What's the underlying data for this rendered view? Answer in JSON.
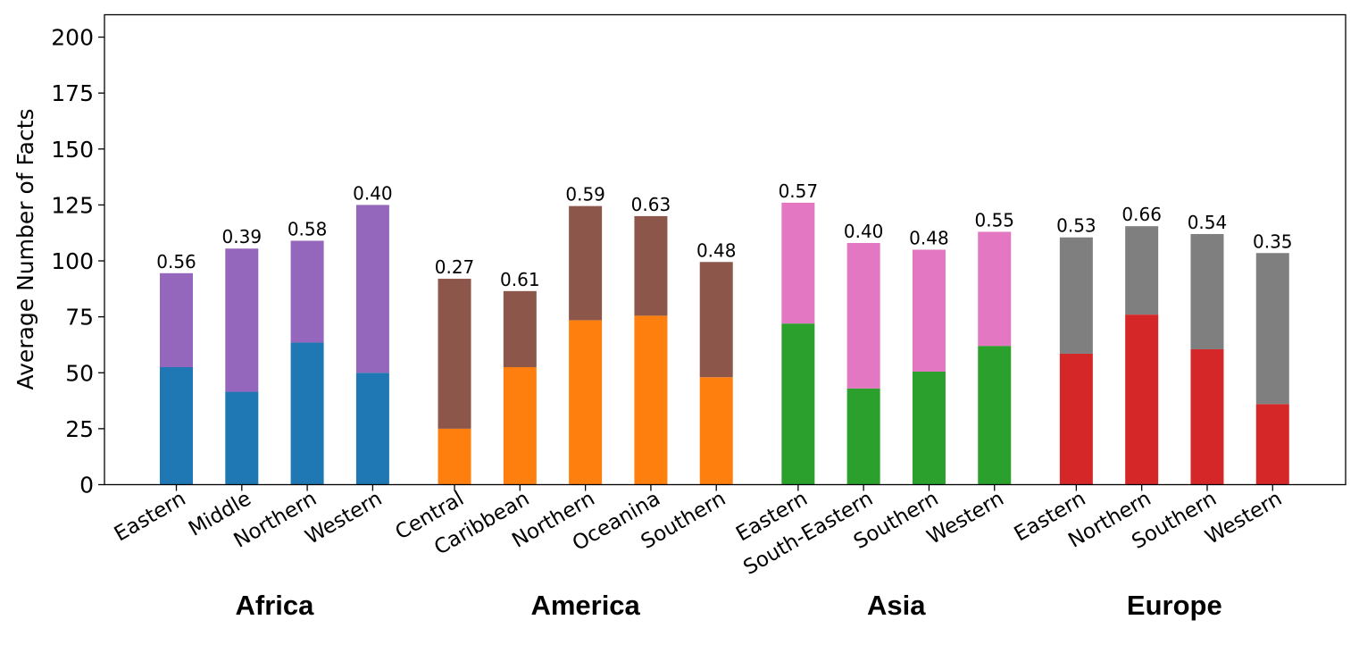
{
  "chart_data": {
    "type": "bar",
    "stacked": true,
    "ylabel": "Average Number of Facts",
    "xlabel": "",
    "ylim": [
      0,
      210
    ],
    "yticks": [
      "0",
      "25",
      "50",
      "75",
      "100",
      "125",
      "150",
      "175",
      "200"
    ],
    "series": [
      {
        "name": "base"
      },
      {
        "name": "top"
      }
    ],
    "groups": [
      {
        "name": "Africa",
        "colors": {
          "base": "#1f77b4",
          "top": "#9467bd"
        },
        "bars": [
          {
            "category": "Eastern",
            "base": 52.5,
            "total": 94.5,
            "label": "0.56"
          },
          {
            "category": "Middle",
            "base": 41.5,
            "total": 105.5,
            "label": "0.39"
          },
          {
            "category": "Northern",
            "base": 63.5,
            "total": 109,
            "label": "0.58"
          },
          {
            "category": "Western",
            "base": 50,
            "total": 125,
            "label": "0.40"
          }
        ]
      },
      {
        "name": "America",
        "colors": {
          "base": "#ff7f0e",
          "top": "#8c564b"
        },
        "bars": [
          {
            "category": "Central",
            "base": 25,
            "total": 92,
            "label": "0.27"
          },
          {
            "category": "Caribbean",
            "base": 52.5,
            "total": 86.5,
            "label": "0.61"
          },
          {
            "category": "Northern",
            "base": 73.5,
            "total": 124.5,
            "label": "0.59"
          },
          {
            "category": "Oceanina",
            "base": 75.5,
            "total": 120,
            "label": "0.63"
          },
          {
            "category": "Southern",
            "base": 48,
            "total": 99.5,
            "label": "0.48"
          }
        ]
      },
      {
        "name": "Asia",
        "colors": {
          "base": "#2ca02c",
          "top": "#e377c2"
        },
        "bars": [
          {
            "category": "Eastern",
            "base": 72,
            "total": 126,
            "label": "0.57"
          },
          {
            "category": "South-Eastern",
            "base": 43,
            "total": 108,
            "label": "0.40"
          },
          {
            "category": "Southern",
            "base": 50.5,
            "total": 105,
            "label": "0.48"
          },
          {
            "category": "Western",
            "base": 62,
            "total": 113,
            "label": "0.55"
          }
        ]
      },
      {
        "name": "Europe",
        "colors": {
          "base": "#d62728",
          "top": "#7f7f7f"
        },
        "bars": [
          {
            "category": "Eastern",
            "base": 58.5,
            "total": 110.5,
            "label": "0.53"
          },
          {
            "category": "Northern",
            "base": 76,
            "total": 115.5,
            "label": "0.66"
          },
          {
            "category": "Southern",
            "base": 60.5,
            "total": 112,
            "label": "0.54"
          },
          {
            "category": "Western",
            "base": 36,
            "total": 103.5,
            "label": "0.35"
          }
        ]
      }
    ]
  }
}
